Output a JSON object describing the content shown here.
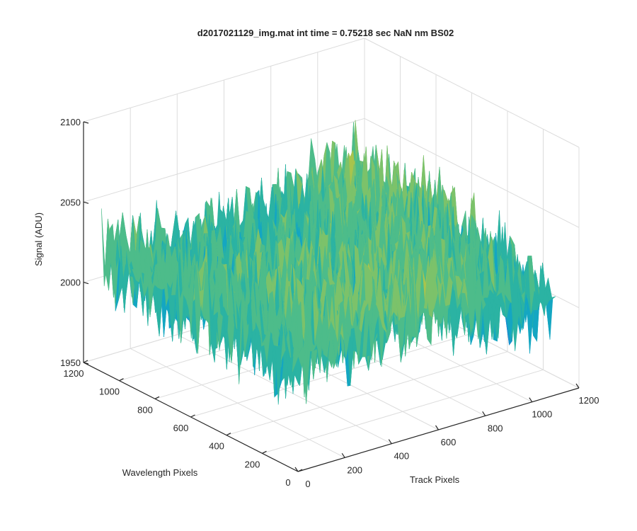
{
  "chart_data": {
    "type": "surface",
    "title": "d2017021129_img.mat int time = 0.75218 sec  NaN nm BS02",
    "xlabel": "Track Pixels",
    "ylabel": "Wavelength Pixels",
    "zlabel": "Signal (ADU)",
    "xlim": [
      0,
      1200
    ],
    "ylim": [
      0,
      1200
    ],
    "zlim": [
      1950,
      2100
    ],
    "xticks": [
      0,
      200,
      400,
      600,
      800,
      1000,
      1200
    ],
    "yticks": [
      0,
      200,
      400,
      600,
      800,
      1000,
      1200
    ],
    "zticks": [
      1950,
      2000,
      2050,
      2100
    ],
    "x_tick_labels": [
      "0",
      "200",
      "400",
      "600",
      "800",
      "1000",
      "1200"
    ],
    "y_tick_labels": [
      "0",
      "200",
      "400",
      "600",
      "800",
      "1000",
      "1200"
    ],
    "z_tick_labels": [
      "1950",
      "2000",
      "2050",
      "2100"
    ],
    "grid": true,
    "colormap": "parula",
    "surface_summary": {
      "x_extent": [
        0,
        1100
      ],
      "y_extent": [
        0,
        1100
      ],
      "mean_signal": 2020,
      "noise_range": [
        1980,
        2070
      ]
    }
  }
}
